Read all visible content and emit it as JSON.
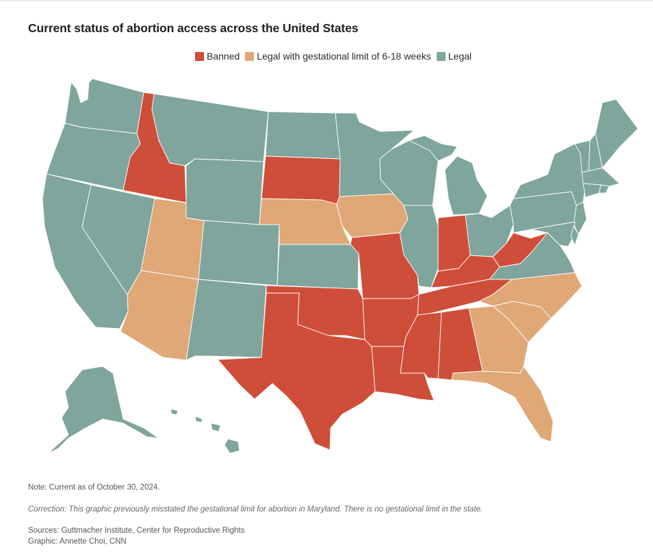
{
  "title": "Current status of abortion access across the United States",
  "legend": [
    {
      "label": "Banned",
      "color": "#cf4e3a"
    },
    {
      "label": "Legal with gestational limit of 6-18 weeks",
      "color": "#dfa876"
    },
    {
      "label": "Legal",
      "color": "#7fa59c"
    }
  ],
  "colors": {
    "banned": "#cf4e3a",
    "limit": "#dfa876",
    "legal": "#7fa59c",
    "border": "#ffffff"
  },
  "notes": {
    "note": "Note: Current as of October 30, 2024.",
    "correction": "Correction: This graphic previously misstated the gestational limit for abortion in Maryland. There is no gestational limit in the state.",
    "sources": "Sources: Guttmacher Institute, Center for Reproductive Rights",
    "graphic": "Graphic: Annette Choi, CNN"
  },
  "states": [
    {
      "id": "WA",
      "status": "legal"
    },
    {
      "id": "OR",
      "status": "legal"
    },
    {
      "id": "CA",
      "status": "legal"
    },
    {
      "id": "ID",
      "status": "banned"
    },
    {
      "id": "NV",
      "status": "legal"
    },
    {
      "id": "UT",
      "status": "limit"
    },
    {
      "id": "AZ",
      "status": "limit"
    },
    {
      "id": "MT",
      "status": "legal"
    },
    {
      "id": "WY",
      "status": "legal"
    },
    {
      "id": "CO",
      "status": "legal"
    },
    {
      "id": "NM",
      "status": "legal"
    },
    {
      "id": "ND",
      "status": "legal"
    },
    {
      "id": "SD",
      "status": "banned"
    },
    {
      "id": "NE",
      "status": "limit"
    },
    {
      "id": "KS",
      "status": "legal"
    },
    {
      "id": "OK",
      "status": "banned"
    },
    {
      "id": "TX",
      "status": "banned"
    },
    {
      "id": "MN",
      "status": "legal"
    },
    {
      "id": "IA",
      "status": "limit"
    },
    {
      "id": "MO",
      "status": "banned"
    },
    {
      "id": "AR",
      "status": "banned"
    },
    {
      "id": "LA",
      "status": "banned"
    },
    {
      "id": "WI",
      "status": "legal"
    },
    {
      "id": "IL",
      "status": "legal"
    },
    {
      "id": "MI",
      "status": "legal"
    },
    {
      "id": "IN",
      "status": "banned"
    },
    {
      "id": "OH",
      "status": "legal"
    },
    {
      "id": "KY",
      "status": "banned"
    },
    {
      "id": "TN",
      "status": "banned"
    },
    {
      "id": "MS",
      "status": "banned"
    },
    {
      "id": "AL",
      "status": "banned"
    },
    {
      "id": "GA",
      "status": "limit"
    },
    {
      "id": "FL",
      "status": "limit"
    },
    {
      "id": "SC",
      "status": "limit"
    },
    {
      "id": "NC",
      "status": "limit"
    },
    {
      "id": "VA",
      "status": "legal"
    },
    {
      "id": "WV",
      "status": "banned"
    },
    {
      "id": "PA",
      "status": "legal"
    },
    {
      "id": "NY",
      "status": "legal"
    },
    {
      "id": "NJ",
      "status": "legal"
    },
    {
      "id": "DE",
      "status": "legal"
    },
    {
      "id": "MD",
      "status": "legal"
    },
    {
      "id": "VT",
      "status": "legal"
    },
    {
      "id": "NH",
      "status": "legal"
    },
    {
      "id": "ME",
      "status": "legal"
    },
    {
      "id": "MA",
      "status": "legal"
    },
    {
      "id": "RI",
      "status": "legal"
    },
    {
      "id": "CT",
      "status": "legal"
    },
    {
      "id": "AK",
      "status": "legal"
    },
    {
      "id": "HI",
      "status": "legal"
    }
  ]
}
